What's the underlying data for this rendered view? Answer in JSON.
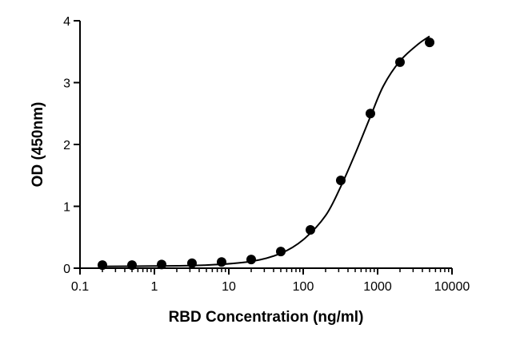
{
  "chart_data": {
    "type": "scatter",
    "title": "",
    "xlabel": "RBD Concentration (ng/ml)",
    "ylabel": "OD (450nm)",
    "x_scale": "log",
    "xlim": [
      0.1,
      10000
    ],
    "ylim": [
      0,
      4
    ],
    "x_ticks": [
      0.1,
      1,
      10,
      100,
      1000,
      10000
    ],
    "x_tick_labels": [
      "0.1",
      "1",
      "10",
      "100",
      "1000",
      "10000"
    ],
    "y_ticks": [
      0,
      1,
      2,
      3,
      4
    ],
    "y_tick_labels": [
      "0",
      "1",
      "2",
      "3",
      "4"
    ],
    "grid": false,
    "legend": "none",
    "series": [
      {
        "marker": "filled-circle",
        "color": "#000000",
        "points": [
          {
            "x": 0.2,
            "y": 0.05
          },
          {
            "x": 0.5,
            "y": 0.05
          },
          {
            "x": 1.25,
            "y": 0.06
          },
          {
            "x": 3.2,
            "y": 0.08
          },
          {
            "x": 8,
            "y": 0.1
          },
          {
            "x": 20,
            "y": 0.14
          },
          {
            "x": 50,
            "y": 0.27
          },
          {
            "x": 125,
            "y": 0.62
          },
          {
            "x": 320,
            "y": 1.42
          },
          {
            "x": 800,
            "y": 2.5
          },
          {
            "x": 2000,
            "y": 3.33
          },
          {
            "x": 5000,
            "y": 3.65
          }
        ]
      }
    ],
    "fit_curve": {
      "color": "#000000",
      "points": [
        {
          "x": 0.2,
          "y": 0.03
        },
        {
          "x": 1,
          "y": 0.035
        },
        {
          "x": 5,
          "y": 0.05
        },
        {
          "x": 20,
          "y": 0.11
        },
        {
          "x": 50,
          "y": 0.24
        },
        {
          "x": 100,
          "y": 0.46
        },
        {
          "x": 200,
          "y": 0.85
        },
        {
          "x": 320,
          "y": 1.32
        },
        {
          "x": 500,
          "y": 1.85
        },
        {
          "x": 800,
          "y": 2.45
        },
        {
          "x": 1200,
          "y": 2.95
        },
        {
          "x": 2000,
          "y": 3.35
        },
        {
          "x": 3500,
          "y": 3.62
        },
        {
          "x": 5000,
          "y": 3.75
        }
      ]
    }
  }
}
